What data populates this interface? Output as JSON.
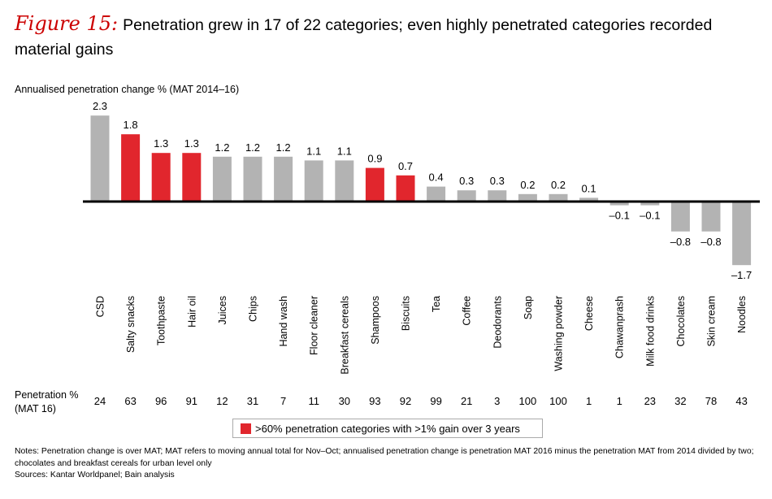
{
  "header": {
    "figure_label": "Figure 15:",
    "title": "Penetration grew in 17 of 22 categories; even highly penetrated categories recorded material gains"
  },
  "colors": {
    "highlight": "#e1262d",
    "default": "#b3b3b3",
    "figure_label": "#cc0000"
  },
  "chart_data": {
    "type": "bar",
    "title": "Penetration grew in 17 of 22 categories; even highly penetrated categories recorded material gains",
    "ylabel": "Annualised penetration change % (MAT 2014–16)",
    "xlabel": "",
    "ylim": [
      -2.0,
      2.4
    ],
    "grid": false,
    "categories": [
      "CSD",
      "Salty snacks",
      "Toothpaste",
      "Hair oil",
      "Juices",
      "Chips",
      "Hand wash",
      "Floor cleaner",
      "Breakfast cereals",
      "Shampoos",
      "Biscuits",
      "Tea",
      "Coffee",
      "Deodorants",
      "Soap",
      "Washing powder",
      "Cheese",
      "Chawanprash",
      "Milk food drinks",
      "Chocolates",
      "Skin cream",
      "Noodles"
    ],
    "values": [
      2.3,
      1.8,
      1.3,
      1.3,
      1.2,
      1.2,
      1.2,
      1.1,
      1.1,
      0.9,
      0.7,
      0.4,
      0.3,
      0.3,
      0.2,
      0.2,
      0.1,
      -0.1,
      -0.1,
      -0.8,
      -0.8,
      -1.7
    ],
    "value_labels": [
      "2.3",
      "1.8",
      "1.3",
      "1.3",
      "1.2",
      "1.2",
      "1.2",
      "1.1",
      "1.1",
      "0.9",
      "0.7",
      "0.4",
      "0.3",
      "0.3",
      "0.2",
      "0.2",
      "0.1",
      "–0.1",
      "–0.1",
      "–0.8",
      "–0.8",
      "–1.7"
    ],
    "highlighted": [
      false,
      true,
      true,
      true,
      false,
      false,
      false,
      false,
      false,
      true,
      true,
      false,
      false,
      false,
      false,
      false,
      false,
      false,
      false,
      false,
      false,
      false
    ],
    "penetration_label": [
      "Penetration %",
      "(MAT 16)"
    ],
    "penetration": [
      24,
      63,
      96,
      91,
      12,
      31,
      7,
      11,
      30,
      93,
      92,
      99,
      21,
      3,
      100,
      100,
      1,
      1,
      23,
      32,
      78,
      43
    ],
    "legend": [
      {
        "label": ">60% penetration categories with >1% gain over 3 years",
        "color": "#e1262d"
      }
    ]
  },
  "notes": [
    "Notes: Penetration change is over MAT; MAT refers to moving annual total for Nov–Oct; annualised penetration change is penetration MAT 2016 minus the penetration MAT from 2014 divided by two; chocolates and breakfast cereals for urban level only",
    "Sources: Kantar Worldpanel; Bain analysis"
  ]
}
